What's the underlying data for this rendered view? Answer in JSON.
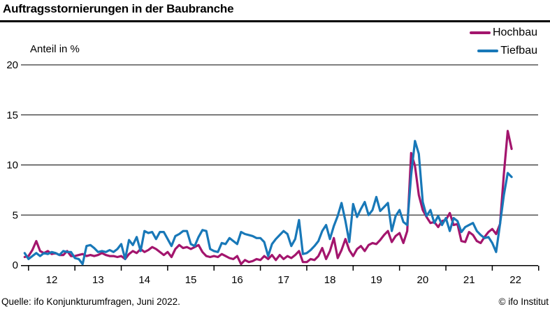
{
  "header": {
    "title": "Auftragsstornierungen in der Baubranche"
  },
  "legend": {
    "items": [
      {
        "label": "Hochbau",
        "color": "#a3156d"
      },
      {
        "label": "Tiefbau",
        "color": "#1878b8"
      }
    ]
  },
  "footer": {
    "source": "Quelle: ifo Konjunkturumfragen, Juni 2022.",
    "copyright": "© ifo Institut"
  },
  "chart_data": {
    "type": "line",
    "title": "Auftragsstornierungen in der Baubranche",
    "ylabel": "Anteil in %",
    "frequency": "monthly",
    "x_start": "2011-12",
    "x_end": "2022-06",
    "x_tick_labels": [
      "12",
      "13",
      "14",
      "15",
      "16",
      "17",
      "18",
      "19",
      "20",
      "21",
      "22"
    ],
    "ylim": [
      0,
      20
    ],
    "y_ticks": [
      0,
      5,
      10,
      15,
      20
    ],
    "grid": "horizontal",
    "legend_position": "top-right",
    "series": [
      {
        "name": "Hochbau",
        "color": "#a3156d",
        "values": [
          0.8,
          0.9,
          1.5,
          2.4,
          1.4,
          1.2,
          1.4,
          1.1,
          1.2,
          1.0,
          1.0,
          1.4,
          0.9,
          0.9,
          1.0,
          1.1,
          0.9,
          1.0,
          0.9,
          1.0,
          1.2,
          1.0,
          0.9,
          0.9,
          0.8,
          0.9,
          0.6,
          1.1,
          1.4,
          1.2,
          1.6,
          1.3,
          1.5,
          1.8,
          1.6,
          1.3,
          1.0,
          1.3,
          0.8,
          1.6,
          2.0,
          1.7,
          1.8,
          1.6,
          1.8,
          2.0,
          1.3,
          0.9,
          0.8,
          0.9,
          0.8,
          1.1,
          0.9,
          0.7,
          0.6,
          0.9,
          0.1,
          0.5,
          0.3,
          0.4,
          0.6,
          0.5,
          0.9,
          0.6,
          1.0,
          0.5,
          1.0,
          0.6,
          0.9,
          0.7,
          1.0,
          1.4,
          0.3,
          0.3,
          0.6,
          0.5,
          0.9,
          1.7,
          0.6,
          1.4,
          2.7,
          0.7,
          1.5,
          2.6,
          1.5,
          0.9,
          1.6,
          1.9,
          1.4,
          2.0,
          2.2,
          2.1,
          2.5,
          3.0,
          3.4,
          2.3,
          2.9,
          3.2,
          2.2,
          3.4,
          11.2,
          9.9,
          7.0,
          5.5,
          4.8,
          4.2,
          4.3,
          3.8,
          4.4,
          4.5,
          5.2,
          4.0,
          4.1,
          2.4,
          2.3,
          3.3,
          3.0,
          2.4,
          2.2,
          2.8,
          3.3,
          3.6,
          3.1,
          4.1,
          9.1,
          13.4,
          11.6
        ]
      },
      {
        "name": "Tiefbau",
        "color": "#1878b8",
        "values": [
          1.2,
          0.6,
          0.9,
          1.2,
          0.9,
          1.2,
          1.1,
          1.3,
          1.2,
          1.0,
          1.4,
          1.3,
          1.3,
          0.7,
          0.6,
          0.1,
          1.9,
          2.0,
          1.7,
          1.3,
          1.4,
          1.3,
          1.5,
          1.3,
          1.6,
          2.1,
          0.6,
          2.5,
          2.0,
          2.8,
          1.4,
          3.4,
          3.2,
          3.3,
          2.6,
          3.3,
          3.3,
          2.6,
          1.9,
          2.9,
          3.1,
          3.4,
          3.4,
          2.1,
          1.9,
          2.8,
          3.5,
          3.4,
          1.6,
          1.4,
          1.3,
          2.2,
          2.1,
          2.7,
          2.4,
          2.1,
          3.3,
          3.1,
          3.0,
          2.9,
          2.7,
          2.7,
          2.3,
          0.9,
          2.1,
          2.6,
          3.0,
          3.4,
          3.1,
          1.9,
          2.6,
          4.5,
          1.1,
          1.2,
          1.5,
          1.9,
          2.4,
          3.4,
          4.0,
          2.6,
          3.9,
          4.9,
          6.2,
          4.4,
          2.3,
          6.1,
          4.8,
          5.6,
          6.3,
          5.0,
          5.5,
          6.8,
          5.4,
          5.8,
          6.2,
          3.4,
          4.9,
          5.5,
          4.3,
          4.0,
          9.0,
          12.4,
          11.1,
          6.3,
          4.9,
          5.5,
          4.2,
          4.9,
          4.0,
          4.7,
          3.4,
          4.7,
          4.4,
          3.3,
          3.8,
          4.0,
          4.2,
          3.4,
          3.0,
          2.7,
          2.8,
          2.2,
          1.3,
          4.1,
          7.0,
          9.2,
          8.8
        ]
      }
    ]
  }
}
